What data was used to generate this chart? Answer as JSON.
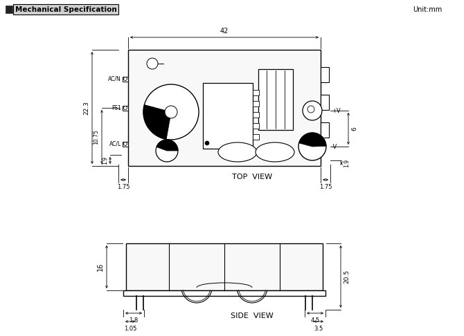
{
  "title": "Mechanical Specification",
  "unit_label": "Unit:mm",
  "bg_color": "#ffffff",
  "fig_width": 6.7,
  "fig_height": 4.86,
  "top_view_label": "TOP  VIEW",
  "side_view_label": "SIDE  VIEW",
  "dims": {
    "top_width": "42",
    "top_height": "22.3",
    "inner_h1": "10.75",
    "inner_h2": "1.9",
    "left_tab": "1.75",
    "right_tab": "1.75",
    "right_v_gap": "6",
    "right_bot": "1.9",
    "side_h": "16",
    "side_total": "20.5",
    "pin_l1": "1.8",
    "pin_l2": "1.05",
    "pin_r1": "4.5",
    "pin_r2": "3.5"
  },
  "labels": {
    "ACN": "AC/N",
    "ACL": "AC/L",
    "FS1": "FS1",
    "plusV": "+V",
    "minusV": "-V"
  }
}
